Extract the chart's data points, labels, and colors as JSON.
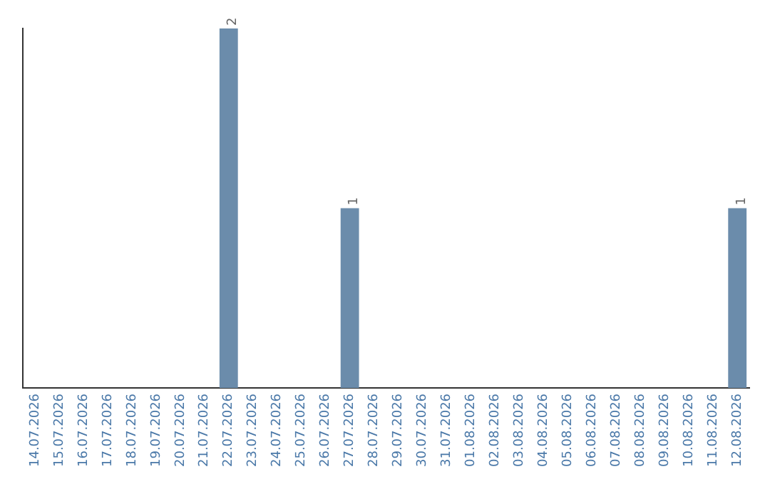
{
  "chart_data": {
    "type": "bar",
    "categories": [
      "14.07.2026",
      "15.07.2026",
      "16.07.2026",
      "17.07.2026",
      "18.07.2026",
      "19.07.2026",
      "20.07.2026",
      "21.07.2026",
      "22.07.2026",
      "23.07.2026",
      "24.07.2026",
      "25.07.2026",
      "26.07.2026",
      "27.07.2026",
      "28.07.2026",
      "29.07.2026",
      "30.07.2026",
      "31.07.2026",
      "01.08.2026",
      "02.08.2026",
      "03.08.2026",
      "04.08.2026",
      "05.08.2026",
      "06.08.2026",
      "07.08.2026",
      "08.08.2026",
      "09.08.2026",
      "10.08.2026",
      "11.08.2026",
      "12.08.2026"
    ],
    "values": [
      0,
      0,
      0,
      0,
      0,
      0,
      0,
      0,
      2,
      0,
      0,
      0,
      0,
      1,
      0,
      0,
      0,
      0,
      0,
      0,
      0,
      0,
      0,
      0,
      0,
      0,
      0,
      0,
      0,
      1
    ],
    "value_labels": [
      null,
      null,
      null,
      null,
      null,
      null,
      null,
      null,
      "2",
      null,
      null,
      null,
      null,
      "1",
      null,
      null,
      null,
      null,
      null,
      null,
      null,
      null,
      null,
      null,
      null,
      null,
      null,
      null,
      null,
      "1"
    ],
    "color": "#6b8cab",
    "grid": false,
    "legend": false
  }
}
